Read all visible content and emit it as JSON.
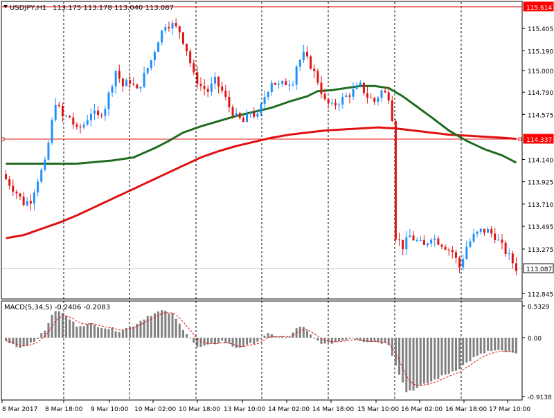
{
  "colors": {
    "background": "#ffffff",
    "frame": "#000000",
    "grid": "#000000",
    "candle_up": "#1e90ff",
    "candle_down": "#e11414",
    "ma_fast": "#1f6b1f",
    "ma_slow": "#e01010",
    "macd_bar": "#808080",
    "signal": "#e01010",
    "price_line": "#c0c0c0",
    "label_red_bg": "#ff0000",
    "label_white_bg": "#ffffff"
  },
  "header": {
    "caret_icon": "triangle-down",
    "symbol_tf": "USDJPY,H1",
    "ohlc": "113.175 113.178 113.040 113.087"
  },
  "price_axis": {
    "ticks": [
      "115.405",
      "115.190",
      "115.000",
      "114.790",
      "114.575",
      "114.140",
      "113.925",
      "113.710",
      "113.495",
      "113.275",
      "112.845"
    ],
    "line_labels": [
      "115.614",
      "114.337",
      "113.087"
    ]
  },
  "macd": {
    "title": "MACD(5,34,5) -0.2406 -0.2083",
    "ticks": [
      "0.5329",
      "0.00",
      "-0.9138"
    ]
  },
  "time_axis": [
    "8 Mar 2017",
    "8 Mar 18:00",
    "9 Mar 10:00",
    "10 Mar 02:00",
    "10 Mar 18:00",
    "13 Mar 10:00",
    "14 Mar 02:00",
    "14 Mar 18:00",
    "15 Mar 10:00",
    "16 Mar 02:00",
    "16 Mar 18:00",
    "17 Mar 10:00"
  ],
  "chart_data": {
    "type": "candlestick",
    "symbol": "USDJPY",
    "timeframe": "H1",
    "ylim": [
      112.8,
      115.66
    ],
    "hlines": [
      115.614,
      114.337,
      113.087
    ],
    "close_anchors": [
      [
        0,
        113.95
      ],
      [
        3,
        113.82
      ],
      [
        5,
        113.72
      ],
      [
        7,
        113.75
      ],
      [
        9,
        113.95
      ],
      [
        11,
        114.1
      ],
      [
        14,
        114.7
      ],
      [
        16,
        114.55
      ],
      [
        18,
        114.55
      ],
      [
        20,
        114.42
      ],
      [
        22,
        114.48
      ],
      [
        24,
        114.6
      ],
      [
        26,
        114.55
      ],
      [
        28,
        114.65
      ],
      [
        31,
        115.0
      ],
      [
        33,
        114.85
      ],
      [
        35,
        114.9
      ],
      [
        37,
        114.8
      ],
      [
        39,
        114.95
      ],
      [
        41,
        115.1
      ],
      [
        43,
        115.3
      ],
      [
        45,
        115.45
      ],
      [
        47,
        115.44
      ],
      [
        49,
        115.38
      ],
      [
        51,
        115.2
      ],
      [
        53,
        114.95
      ],
      [
        55,
        114.85
      ],
      [
        57,
        114.8
      ],
      [
        59,
        114.9
      ],
      [
        61,
        114.8
      ],
      [
        63,
        114.65
      ],
      [
        65,
        114.55
      ],
      [
        67,
        114.5
      ],
      [
        69,
        114.6
      ],
      [
        71,
        114.55
      ],
      [
        73,
        114.75
      ],
      [
        75,
        114.9
      ],
      [
        77,
        114.85
      ],
      [
        79,
        114.88
      ],
      [
        81,
        114.9
      ],
      [
        82,
        115.05
      ],
      [
        84,
        115.15
      ],
      [
        86,
        115.05
      ],
      [
        88,
        114.9
      ],
      [
        90,
        114.7
      ],
      [
        92,
        114.65
      ],
      [
        94,
        114.7
      ],
      [
        96,
        114.75
      ],
      [
        98,
        114.8
      ],
      [
        100,
        114.85
      ],
      [
        102,
        114.75
      ],
      [
        104,
        114.7
      ],
      [
        106,
        114.8
      ],
      [
        108,
        114.75
      ],
      [
        109,
        114.55
      ],
      [
        110,
        113.4
      ],
      [
        112,
        113.3
      ],
      [
        114,
        113.4
      ],
      [
        116,
        113.35
      ],
      [
        118,
        113.3
      ],
      [
        120,
        113.4
      ],
      [
        122,
        113.35
      ],
      [
        124,
        113.3
      ],
      [
        126,
        113.25
      ],
      [
        128,
        113.1
      ],
      [
        130,
        113.3
      ],
      [
        132,
        113.4
      ],
      [
        134,
        113.45
      ],
      [
        136,
        113.45
      ],
      [
        138,
        113.4
      ],
      [
        140,
        113.3
      ],
      [
        142,
        113.2
      ],
      [
        144,
        113.09
      ]
    ],
    "ma_fast": [
      [
        0,
        114.1
      ],
      [
        10,
        114.1
      ],
      [
        20,
        114.1
      ],
      [
        30,
        114.13
      ],
      [
        36,
        114.16
      ],
      [
        42,
        114.25
      ],
      [
        46,
        114.32
      ],
      [
        50,
        114.4
      ],
      [
        55,
        114.46
      ],
      [
        60,
        114.51
      ],
      [
        65,
        114.56
      ],
      [
        70,
        114.6
      ],
      [
        75,
        114.64
      ],
      [
        80,
        114.7
      ],
      [
        85,
        114.75
      ],
      [
        88,
        114.8
      ],
      [
        92,
        114.81
      ],
      [
        96,
        114.83
      ],
      [
        100,
        114.85
      ],
      [
        104,
        114.85
      ],
      [
        108,
        114.83
      ],
      [
        112,
        114.75
      ],
      [
        116,
        114.65
      ],
      [
        120,
        114.55
      ],
      [
        125,
        114.42
      ],
      [
        130,
        114.32
      ],
      [
        135,
        114.24
      ],
      [
        140,
        114.18
      ],
      [
        144,
        114.11
      ]
    ],
    "ma_slow": [
      [
        0,
        113.38
      ],
      [
        5,
        113.41
      ],
      [
        10,
        113.47
      ],
      [
        15,
        113.53
      ],
      [
        20,
        113.6
      ],
      [
        25,
        113.68
      ],
      [
        30,
        113.76
      ],
      [
        35,
        113.84
      ],
      [
        40,
        113.92
      ],
      [
        45,
        114.0
      ],
      [
        50,
        114.08
      ],
      [
        55,
        114.16
      ],
      [
        60,
        114.22
      ],
      [
        65,
        114.27
      ],
      [
        70,
        114.31
      ],
      [
        75,
        114.35
      ],
      [
        80,
        114.38
      ],
      [
        85,
        114.4
      ],
      [
        90,
        114.42
      ],
      [
        95,
        114.43
      ],
      [
        100,
        114.44
      ],
      [
        105,
        114.45
      ],
      [
        110,
        114.44
      ],
      [
        115,
        114.42
      ],
      [
        120,
        114.4
      ],
      [
        125,
        114.38
      ],
      [
        130,
        114.37
      ],
      [
        135,
        114.36
      ],
      [
        140,
        114.35
      ],
      [
        144,
        114.34
      ]
    ],
    "macd": {
      "fast": 5,
      "slow": 34,
      "signal": 5,
      "last_macd": -0.2406,
      "last_signal": -0.2083,
      "ylim": [
        -0.9138,
        0.5329
      ],
      "hist_anchors": [
        [
          0,
          -0.05
        ],
        [
          4,
          -0.15
        ],
        [
          8,
          -0.05
        ],
        [
          11,
          0.1
        ],
        [
          13,
          0.35
        ],
        [
          15,
          0.4
        ],
        [
          17,
          0.32
        ],
        [
          20,
          0.18
        ],
        [
          24,
          0.2
        ],
        [
          28,
          0.15
        ],
        [
          32,
          0.1
        ],
        [
          36,
          0.18
        ],
        [
          40,
          0.32
        ],
        [
          44,
          0.4
        ],
        [
          47,
          0.35
        ],
        [
          49,
          0.2
        ],
        [
          52,
          0.0
        ],
        [
          54,
          -0.15
        ],
        [
          57,
          -0.12
        ],
        [
          61,
          -0.05
        ],
        [
          65,
          -0.15
        ],
        [
          68,
          -0.12
        ],
        [
          71,
          -0.05
        ],
        [
          74,
          0.05
        ],
        [
          77,
          0.02
        ],
        [
          80,
          0.0
        ],
        [
          82,
          0.15
        ],
        [
          84,
          0.15
        ],
        [
          87,
          -0.02
        ],
        [
          90,
          -0.1
        ],
        [
          94,
          -0.05
        ],
        [
          98,
          0.0
        ],
        [
          101,
          -0.05
        ],
        [
          105,
          -0.06
        ],
        [
          108,
          -0.1
        ],
        [
          110,
          -0.4
        ],
        [
          113,
          -0.8
        ],
        [
          116,
          -0.75
        ],
        [
          120,
          -0.65
        ],
        [
          124,
          -0.55
        ],
        [
          128,
          -0.45
        ],
        [
          132,
          -0.3
        ],
        [
          136,
          -0.2
        ],
        [
          140,
          -0.2
        ],
        [
          144,
          -0.24
        ]
      ]
    }
  }
}
